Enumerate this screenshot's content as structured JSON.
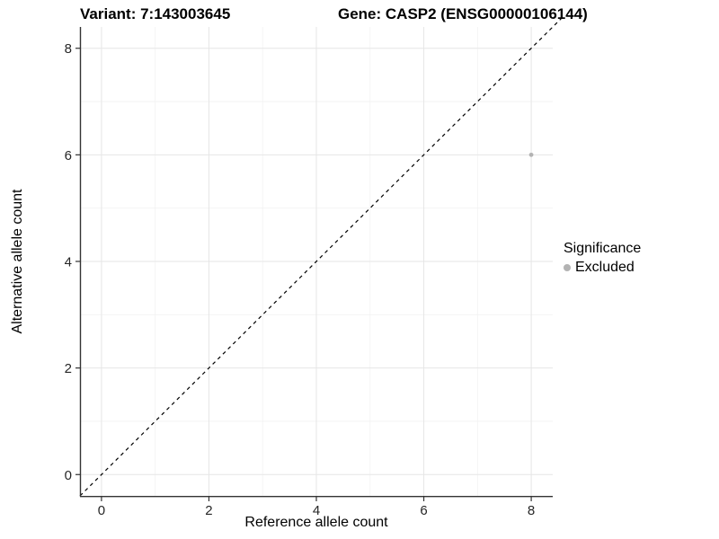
{
  "figure": {
    "title_left": "Variant: 7:143003645",
    "title_right": "Gene: CASP2 (ENSG00000106144)"
  },
  "chart_data": {
    "type": "scatter",
    "title": "Variant: 7:143003645    Gene: CASP2 (ENSG00000106144)",
    "xlabel": "Reference allele count",
    "ylabel": "Alternative allele count",
    "xlim": [
      -0.4,
      8.4
    ],
    "ylim": [
      -0.4,
      8.4
    ],
    "xticks": [
      0,
      2,
      4,
      6,
      8
    ],
    "yticks": [
      0,
      2,
      4,
      6,
      8
    ],
    "minor_xticks": [
      1,
      3,
      5,
      7
    ],
    "minor_yticks": [
      1,
      3,
      5,
      7
    ],
    "grid": true,
    "series": [
      {
        "name": "Excluded",
        "color": "#b3b3b3",
        "points": [
          {
            "x": 8,
            "y": 6
          }
        ]
      }
    ],
    "identity_line": {
      "slope": 1,
      "intercept": 0,
      "style": "dashed",
      "color": "#000000"
    },
    "legend": {
      "title": "Significance",
      "position": "right",
      "items": [
        {
          "label": "Excluded",
          "color": "#b3b3b3"
        }
      ]
    }
  },
  "colors": {
    "background": "#ffffff",
    "grid_major": "#e6e6e6",
    "grid_minor": "#f2f2f2",
    "axis_line": "#333333",
    "tick_label": "#262626",
    "point": "#b3b3b3",
    "identity_line": "#000000"
  }
}
